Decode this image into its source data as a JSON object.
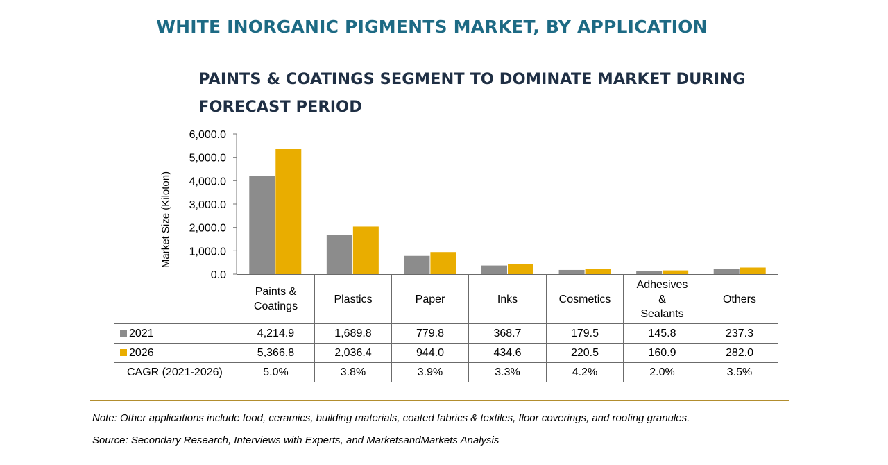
{
  "header": {
    "title": "WHITE INORGANIC PIGMENTS MARKET, BY APPLICATION",
    "subtitle": "PAINTS & COATINGS SEGMENT TO DOMINATE MARKET DURING FORECAST PERIOD"
  },
  "chart_data": {
    "type": "bar",
    "ylabel": "Market Size (Kiloton)",
    "ylim": [
      0,
      6000
    ],
    "yticks": [
      "0.0",
      "1,000.0",
      "2,000.0",
      "3,000.0",
      "4,000.0",
      "5,000.0",
      "6,000.0"
    ],
    "categories": [
      "Paints & Coatings",
      "Plastics",
      "Paper",
      "Inks",
      "Cosmetics",
      "Adhesives & Sealants",
      "Others"
    ],
    "series": [
      {
        "name": "2021",
        "color": "#8c8c8c",
        "values": [
          4214.9,
          1689.8,
          779.8,
          368.7,
          179.5,
          145.8,
          237.3
        ]
      },
      {
        "name": "2026",
        "color": "#e9ad00",
        "values": [
          5366.8,
          2036.4,
          944.0,
          434.6,
          220.5,
          160.9,
          282.0
        ]
      }
    ]
  },
  "table": {
    "header_lines": [
      [
        "Paints &",
        "Coatings"
      ],
      [
        "Plastics"
      ],
      [
        "Paper"
      ],
      [
        "Inks"
      ],
      [
        "Cosmetics"
      ],
      [
        "Adhesives",
        "&",
        "Sealants"
      ],
      [
        "Others"
      ]
    ],
    "rows": [
      {
        "label": "2021",
        "swatch": "#8c8c8c",
        "cells": [
          "4,214.9",
          "1,689.8",
          "779.8",
          "368.7",
          "179.5",
          "145.8",
          "237.3"
        ]
      },
      {
        "label": "2026",
        "swatch": "#e9ad00",
        "cells": [
          "5,366.8",
          "2,036.4",
          "944.0",
          "434.6",
          "220.5",
          "160.9",
          "282.0"
        ]
      },
      {
        "label": "CAGR (2021-2026)",
        "swatch": "",
        "cells": [
          "5.0%",
          "3.8%",
          "3.9%",
          "3.3%",
          "4.2%",
          "2.0%",
          "3.5%"
        ]
      }
    ]
  },
  "footer": {
    "note": "Note: Other applications include food, ceramics, building materials, coated fabrics & textiles, floor coverings, and roofing granules.",
    "source": "Source: Secondary Research, Interviews with Experts, and MarketsandMarkets Analysis"
  }
}
